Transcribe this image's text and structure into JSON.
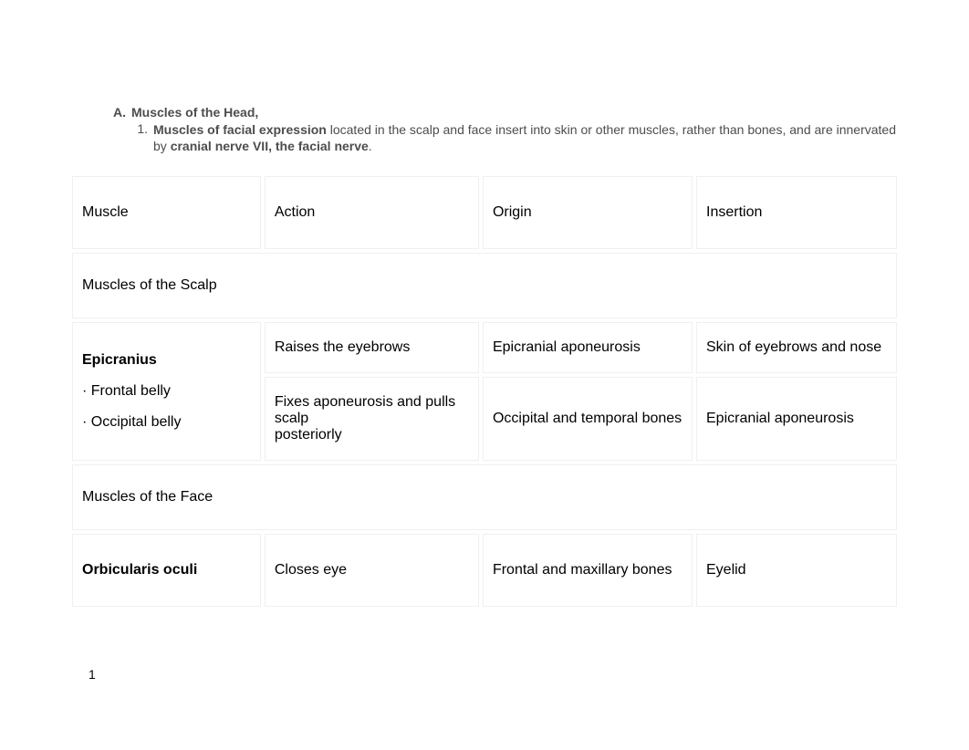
{
  "outline": {
    "a_marker": "A.",
    "a_text": "Muscles of the Head,",
    "one_marker": "1.",
    "one_bold1": "Muscles of facial expression",
    "one_text1": " located in the scalp and face insert into skin or other muscles, rather than bones, and are innervated by ",
    "one_bold2": "cranial nerve VII, the facial nerve",
    "one_text2": "."
  },
  "table": {
    "headers": {
      "muscle": "Muscle",
      "action": "Action",
      "origin": "Origin",
      "insertion": "Insertion"
    },
    "section1": "Muscles of the Scalp",
    "epicranius": {
      "name": "Epicranius",
      "sub1": "· Frontal belly",
      "sub2": "· Occipital belly",
      "row1_action": "Raises the eyebrows",
      "row1_origin": "Epicranial aponeurosis",
      "row1_insertion": "Skin of eyebrows and nose",
      "row2_action_line1": "Fixes aponeurosis and pulls scalp",
      "row2_action_line2": "posteriorly",
      "row2_origin": "Occipital and temporal bones",
      "row2_insertion": "Epicranial aponeurosis"
    },
    "section2": "Muscles of the Face",
    "orbicularis": {
      "name": "Orbicularis oculi",
      "action": "Closes eye",
      "origin": "Frontal and maxillary bones",
      "insertion": "Eyelid"
    }
  },
  "page_number": "1"
}
